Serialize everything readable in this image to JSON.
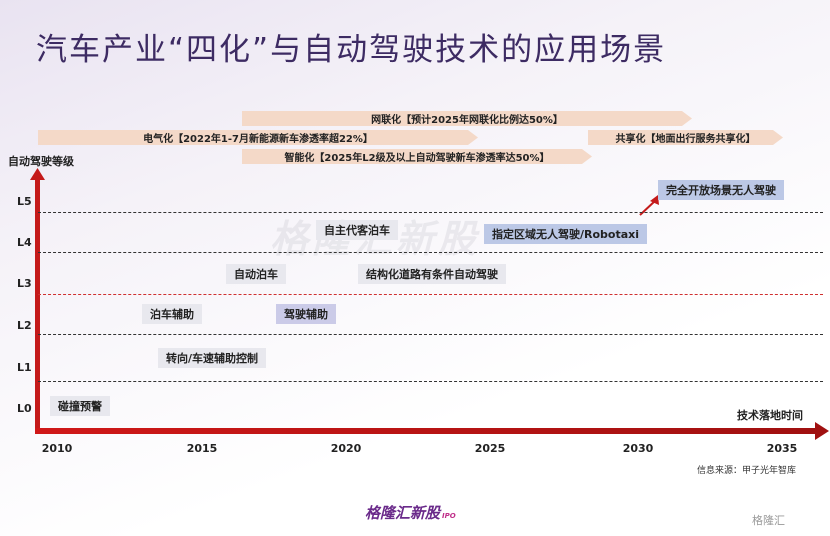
{
  "title": "汽车产业“四化”与自动驾驶技术的应用场景",
  "bands": [
    {
      "key": "network",
      "label": "网联化【预计2025年网联化比例达50%】"
    },
    {
      "key": "electric",
      "label": "电气化【2022年1-7月新能源新车渗透率超22%】"
    },
    {
      "key": "share",
      "label": "共享化【地面出行服务共享化】"
    },
    {
      "key": "smart",
      "label": "智能化【2025年L2级及以上自动驾驶新车渗透率达50%】"
    }
  ],
  "y_axis_label": "自动驾驶等级",
  "levels": [
    "L5",
    "L4",
    "L3",
    "L2",
    "L1",
    "L0"
  ],
  "x_axis_label": "技术落地时间",
  "years": [
    "2010",
    "2015",
    "2020",
    "2025",
    "2030",
    "2035"
  ],
  "features": [
    {
      "key": "f0",
      "label": "碰撞预警"
    },
    {
      "key": "f1",
      "label": "转向/车速辅助控制"
    },
    {
      "key": "f2",
      "label": "泊车辅助"
    },
    {
      "key": "f3",
      "label": "驾驶辅助"
    },
    {
      "key": "f4",
      "label": "自动泊车"
    },
    {
      "key": "f5",
      "label": "结构化道路有条件自动驾驶"
    },
    {
      "key": "f6",
      "label": "自主代客泊车"
    },
    {
      "key": "f7",
      "label": "指定区域无人驾驶/Robotaxi"
    },
    {
      "key": "f8",
      "label": "完全开放场景无人驾驶"
    }
  ],
  "source": "信息来源：甲子光年智库",
  "brand": "格隆汇新股",
  "brand_sub": "IPO",
  "watermark": "格隆汇新股",
  "corner_logo": "格隆汇",
  "colors": {
    "band": "#f4d9c8",
    "axis": "#c41a1a",
    "title": "#3d2b63",
    "brand": "#6a2a8a"
  }
}
